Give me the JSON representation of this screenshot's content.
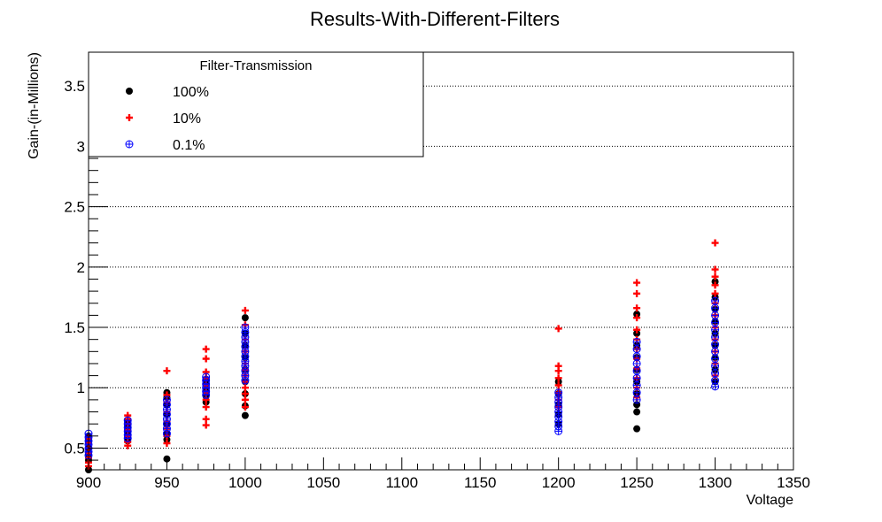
{
  "chart_data": {
    "type": "scatter",
    "title": "Results-With-Different-Filters",
    "xlabel": "Voltage",
    "ylabel": "Gain-(in-Millions)",
    "xlim": [
      900,
      1350
    ],
    "ylim": [
      0.32,
      3.78
    ],
    "x_ticks": [
      900,
      950,
      1000,
      1050,
      1100,
      1150,
      1200,
      1250,
      1300,
      1350
    ],
    "y_ticks": [
      0.5,
      1,
      1.5,
      2,
      2.5,
      3,
      3.5
    ],
    "y_tick_labels": [
      "0.5",
      "1",
      "1.5",
      "2",
      "2.5",
      "3",
      "3.5"
    ],
    "grid": "horizontal-dotted",
    "legend": {
      "title": "Filter-Transmission",
      "placement": "top-left"
    },
    "series": [
      {
        "name": "100%",
        "marker": "filled-circle",
        "color": "#000000",
        "points": [
          [
            900,
            0.32
          ],
          [
            900,
            0.4
          ],
          [
            900,
            0.45
          ],
          [
            900,
            0.5
          ],
          [
            900,
            0.55
          ],
          [
            900,
            0.6
          ],
          [
            925,
            0.56
          ],
          [
            925,
            0.6
          ],
          [
            925,
            0.64
          ],
          [
            925,
            0.68
          ],
          [
            925,
            0.72
          ],
          [
            950,
            0.41
          ],
          [
            950,
            0.57
          ],
          [
            950,
            0.62
          ],
          [
            950,
            0.7
          ],
          [
            950,
            0.78
          ],
          [
            950,
            0.86
          ],
          [
            950,
            0.92
          ],
          [
            950,
            0.96
          ],
          [
            975,
            0.88
          ],
          [
            975,
            0.93
          ],
          [
            975,
            0.98
          ],
          [
            975,
            1.03
          ],
          [
            975,
            1.07
          ],
          [
            1000,
            0.77
          ],
          [
            1000,
            0.85
          ],
          [
            1000,
            0.95
          ],
          [
            1000,
            1.05
          ],
          [
            1000,
            1.15
          ],
          [
            1000,
            1.25
          ],
          [
            1000,
            1.35
          ],
          [
            1000,
            1.45
          ],
          [
            1000,
            1.58
          ],
          [
            1200,
            0.7
          ],
          [
            1200,
            0.78
          ],
          [
            1200,
            0.86
          ],
          [
            1200,
            0.95
          ],
          [
            1200,
            1.05
          ],
          [
            1250,
            0.66
          ],
          [
            1250,
            0.8
          ],
          [
            1250,
            0.86
          ],
          [
            1250,
            0.95
          ],
          [
            1250,
            1.05
          ],
          [
            1250,
            1.15
          ],
          [
            1250,
            1.25
          ],
          [
            1250,
            1.35
          ],
          [
            1250,
            1.45
          ],
          [
            1250,
            1.61
          ],
          [
            1300,
            1.05
          ],
          [
            1300,
            1.15
          ],
          [
            1300,
            1.25
          ],
          [
            1300,
            1.35
          ],
          [
            1300,
            1.45
          ],
          [
            1300,
            1.55
          ],
          [
            1300,
            1.65
          ],
          [
            1300,
            1.75
          ],
          [
            1300,
            1.88
          ]
        ]
      },
      {
        "name": "10%",
        "marker": "plus",
        "color": "#ff0000",
        "points": [
          [
            900,
            0.35
          ],
          [
            900,
            0.38
          ],
          [
            900,
            0.42
          ],
          [
            900,
            0.46
          ],
          [
            900,
            0.5
          ],
          [
            900,
            0.54
          ],
          [
            900,
            0.58
          ],
          [
            925,
            0.52
          ],
          [
            925,
            0.55
          ],
          [
            925,
            0.6
          ],
          [
            925,
            0.65
          ],
          [
            925,
            0.7
          ],
          [
            925,
            0.74
          ],
          [
            925,
            0.77
          ],
          [
            950,
            0.54
          ],
          [
            950,
            0.6
          ],
          [
            950,
            0.66
          ],
          [
            950,
            0.72
          ],
          [
            950,
            0.8
          ],
          [
            950,
            0.88
          ],
          [
            950,
            0.94
          ],
          [
            950,
            1.14
          ],
          [
            975,
            0.69
          ],
          [
            975,
            0.74
          ],
          [
            975,
            0.84
          ],
          [
            975,
            0.9
          ],
          [
            975,
            0.96
          ],
          [
            975,
            1.02
          ],
          [
            975,
            1.08
          ],
          [
            975,
            1.13
          ],
          [
            975,
            1.24
          ],
          [
            975,
            1.32
          ],
          [
            1000,
            0.84
          ],
          [
            1000,
            0.9
          ],
          [
            1000,
            0.95
          ],
          [
            1000,
            1.0
          ],
          [
            1000,
            1.05
          ],
          [
            1000,
            1.1
          ],
          [
            1000,
            1.15
          ],
          [
            1000,
            1.2
          ],
          [
            1000,
            1.3
          ],
          [
            1000,
            1.4
          ],
          [
            1000,
            1.52
          ],
          [
            1000,
            1.64
          ],
          [
            1200,
            0.84
          ],
          [
            1200,
            0.9
          ],
          [
            1200,
            0.96
          ],
          [
            1200,
            1.02
          ],
          [
            1200,
            1.08
          ],
          [
            1200,
            1.14
          ],
          [
            1200,
            1.18
          ],
          [
            1200,
            1.49
          ],
          [
            1250,
            0.92
          ],
          [
            1250,
            1.0
          ],
          [
            1250,
            1.08
          ],
          [
            1250,
            1.16
          ],
          [
            1250,
            1.24
          ],
          [
            1250,
            1.32
          ],
          [
            1250,
            1.4
          ],
          [
            1250,
            1.48
          ],
          [
            1250,
            1.58
          ],
          [
            1250,
            1.66
          ],
          [
            1250,
            1.78
          ],
          [
            1250,
            1.87
          ],
          [
            1300,
            1.1
          ],
          [
            1300,
            1.2
          ],
          [
            1300,
            1.3
          ],
          [
            1300,
            1.4
          ],
          [
            1300,
            1.5
          ],
          [
            1300,
            1.6
          ],
          [
            1300,
            1.7
          ],
          [
            1300,
            1.78
          ],
          [
            1300,
            1.85
          ],
          [
            1300,
            1.92
          ],
          [
            1300,
            1.98
          ],
          [
            1300,
            2.2
          ]
        ]
      },
      {
        "name": "0.1%",
        "marker": "circle-plus",
        "color": "#0000ff",
        "points": [
          [
            900,
            0.44
          ],
          [
            900,
            0.47
          ],
          [
            900,
            0.5
          ],
          [
            900,
            0.53
          ],
          [
            900,
            0.56
          ],
          [
            900,
            0.59
          ],
          [
            900,
            0.62
          ],
          [
            925,
            0.58
          ],
          [
            925,
            0.61
          ],
          [
            925,
            0.64
          ],
          [
            925,
            0.67
          ],
          [
            925,
            0.7
          ],
          [
            925,
            0.73
          ],
          [
            950,
            0.62
          ],
          [
            950,
            0.66
          ],
          [
            950,
            0.7
          ],
          [
            950,
            0.74
          ],
          [
            950,
            0.78
          ],
          [
            950,
            0.82
          ],
          [
            950,
            0.86
          ],
          [
            950,
            0.9
          ],
          [
            975,
            0.94
          ],
          [
            975,
            0.97
          ],
          [
            975,
            1.0
          ],
          [
            975,
            1.03
          ],
          [
            975,
            1.06
          ],
          [
            975,
            1.09
          ],
          [
            1000,
            1.06
          ],
          [
            1000,
            1.1
          ],
          [
            1000,
            1.14
          ],
          [
            1000,
            1.18
          ],
          [
            1000,
            1.22
          ],
          [
            1000,
            1.26
          ],
          [
            1000,
            1.3
          ],
          [
            1000,
            1.34
          ],
          [
            1000,
            1.38
          ],
          [
            1000,
            1.42
          ],
          [
            1000,
            1.46
          ],
          [
            1000,
            1.5
          ],
          [
            1200,
            0.64
          ],
          [
            1200,
            0.68
          ],
          [
            1200,
            0.72
          ],
          [
            1200,
            0.76
          ],
          [
            1200,
            0.8
          ],
          [
            1200,
            0.84
          ],
          [
            1200,
            0.88
          ],
          [
            1200,
            0.92
          ],
          [
            1200,
            0.96
          ],
          [
            1250,
            0.9
          ],
          [
            1250,
            0.96
          ],
          [
            1250,
            1.02
          ],
          [
            1250,
            1.08
          ],
          [
            1250,
            1.14
          ],
          [
            1250,
            1.2
          ],
          [
            1250,
            1.26
          ],
          [
            1250,
            1.32
          ],
          [
            1250,
            1.38
          ],
          [
            1300,
            1.01
          ],
          [
            1300,
            1.06
          ],
          [
            1300,
            1.12
          ],
          [
            1300,
            1.18
          ],
          [
            1300,
            1.24
          ],
          [
            1300,
            1.3
          ],
          [
            1300,
            1.36
          ],
          [
            1300,
            1.42
          ],
          [
            1300,
            1.48
          ],
          [
            1300,
            1.54
          ],
          [
            1300,
            1.6
          ],
          [
            1300,
            1.66
          ],
          [
            1300,
            1.72
          ]
        ]
      }
    ]
  }
}
